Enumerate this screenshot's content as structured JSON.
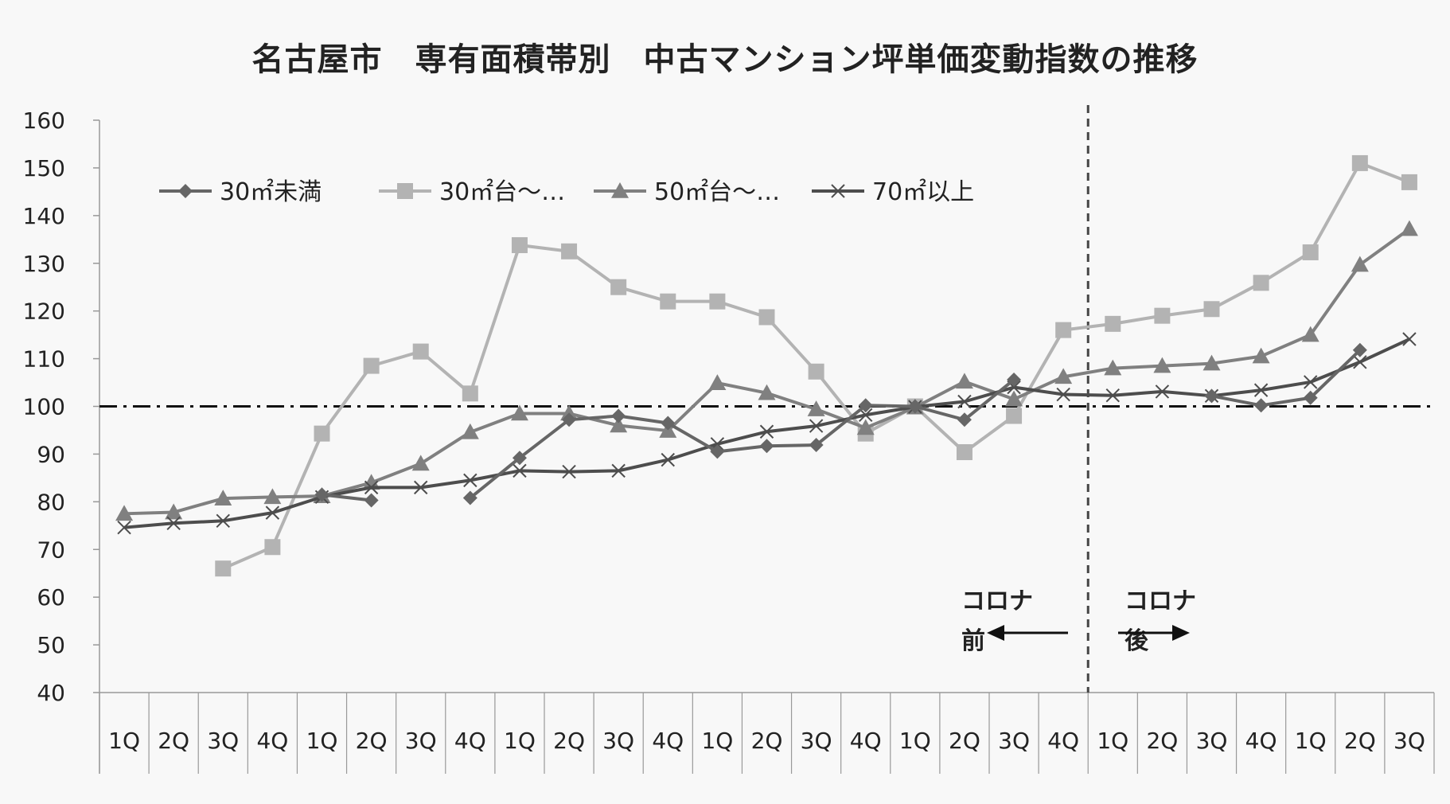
{
  "chart_data": {
    "type": "line",
    "title": "名古屋市　専有面積帯別　中古マンション坪単価変動指数の推移",
    "categories": [
      "1Q",
      "2Q",
      "3Q",
      "4Q",
      "1Q",
      "2Q",
      "3Q",
      "4Q",
      "1Q",
      "2Q",
      "3Q",
      "4Q",
      "1Q",
      "2Q",
      "3Q",
      "4Q",
      "1Q",
      "2Q",
      "3Q",
      "4Q",
      "1Q",
      "2Q",
      "3Q",
      "4Q",
      "1Q",
      "2Q",
      "3Q"
    ],
    "ylim": [
      40,
      160
    ],
    "yticks": [
      160,
      150,
      140,
      130,
      120,
      110,
      100,
      90,
      80,
      70,
      60,
      50,
      40
    ],
    "legend_position": "top-left",
    "reference_line": 100,
    "divider_after_category_index": 19,
    "series": [
      {
        "name": "30㎡未満",
        "marker": "diamond",
        "color": "#666666",
        "values": [
          null,
          null,
          null,
          null,
          81.5,
          80.3,
          null,
          80.8,
          89.2,
          97.2,
          98.0,
          96.5,
          90.5,
          91.7,
          91.9,
          100.2,
          100.0,
          97.2,
          105.6,
          null,
          null,
          null,
          102.2,
          100.2,
          101.8,
          111.8,
          null
        ]
      },
      {
        "name": "30㎡台～…",
        "marker": "square",
        "color": "#b3b3b3",
        "values": [
          null,
          null,
          66.0,
          70.5,
          94.3,
          108.5,
          111.5,
          102.7,
          133.8,
          132.5,
          125.0,
          122.0,
          122.0,
          118.7,
          107.3,
          94.3,
          100.0,
          90.4,
          98.0,
          116.0,
          117.3,
          119.0,
          120.4,
          125.9,
          132.3,
          151.0,
          147.0
        ]
      },
      {
        "name": "50㎡台～…",
        "marker": "triangle",
        "color": "#808080",
        "values": [
          77.5,
          77.8,
          80.7,
          81.0,
          81.2,
          84.0,
          88.0,
          94.6,
          98.5,
          98.5,
          96.0,
          94.9,
          104.9,
          102.8,
          99.4,
          95.5,
          99.8,
          105.2,
          101.5,
          106.2,
          108.0,
          108.5,
          109.0,
          110.5,
          115.0,
          129.7,
          137.2
        ]
      },
      {
        "name": "70㎡以上",
        "marker": "x",
        "color": "#4d4d4d",
        "values": [
          74.6,
          75.5,
          76.0,
          77.7,
          81.0,
          83.0,
          83.0,
          84.5,
          86.5,
          86.3,
          86.5,
          88.8,
          92.1,
          94.7,
          95.9,
          98.2,
          99.9,
          101.0,
          104.0,
          102.5,
          102.3,
          103.1,
          102.2,
          103.4,
          105.1,
          109.3,
          114.1
        ]
      }
    ],
    "annotations": [
      {
        "text_top": "コロナ",
        "text_bottom": "前",
        "arrow": "left"
      },
      {
        "text_top": "コロナ",
        "text_bottom": "後",
        "arrow": "right"
      }
    ]
  }
}
